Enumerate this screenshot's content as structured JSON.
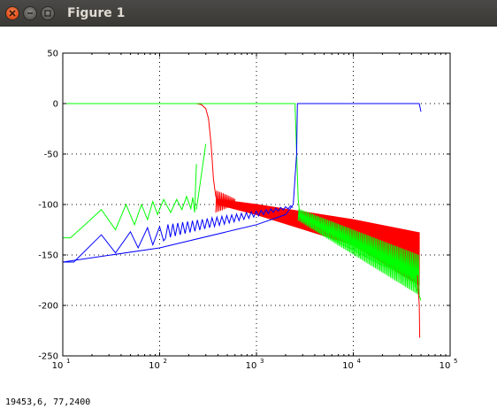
{
  "window": {
    "title": "Figure 1",
    "close_icon": "close-icon",
    "minimize_icon": "minimize-icon",
    "maximize_icon": "maximize-icon"
  },
  "status": {
    "coords": "19453,6,  77,2400"
  },
  "chart_data": {
    "type": "line",
    "title": "",
    "xlabel": "",
    "ylabel": "",
    "xscale": "log",
    "xlim": [
      10,
      100000
    ],
    "ylim": [
      -250,
      50
    ],
    "grid": true,
    "xtick_bases": [
      "10",
      "10",
      "10",
      "10",
      "10"
    ],
    "xtick_exps": [
      "1",
      "2",
      "3",
      "4",
      "5"
    ],
    "yticks": [
      "50",
      "0",
      "-50",
      "-100",
      "-150",
      "-200",
      "-250"
    ],
    "ytick_values": [
      50,
      0,
      -50,
      -100,
      -150,
      -200,
      -250
    ],
    "xtick_values": [
      10,
      100,
      1000,
      10000,
      100000
    ],
    "colors": {
      "red": "#ff0000",
      "green": "#00ff00",
      "blue": "#0000ff"
    },
    "series": [
      {
        "color": "#ff0000",
        "x": [
          10,
          100,
          200,
          240,
          270,
          300,
          320,
          340,
          360,
          380,
          400,
          500
        ],
        "y": [
          0,
          0,
          0,
          0,
          -1,
          -5,
          -15,
          -40,
          -75,
          -92,
          -97,
          -100
        ]
      },
      {
        "color": "#00ff00",
        "x": [
          10,
          300,
          2500,
          2700,
          2800,
          3000,
          5000,
          10000,
          20000,
          40000,
          50000
        ],
        "y": [
          0,
          0,
          0,
          -95,
          -110,
          -115,
          -130,
          -145,
          -160,
          -170,
          -195
        ]
      },
      {
        "color": "#0000ff",
        "x": [
          10,
          100,
          1000,
          2000,
          2400,
          2600,
          2650,
          2700,
          5000,
          10000,
          48000,
          50000
        ],
        "y": [
          -157,
          -143,
          -120,
          -110,
          -100,
          -50,
          0,
          0,
          0,
          0,
          0,
          -8
        ]
      },
      {
        "color": "#ff0000",
        "x": [
          400,
          1000,
          10000,
          48000
        ],
        "y": [
          -95,
          -100,
          -115,
          -128
        ],
        "band_low_y": [
          -100,
          -110,
          -140,
          -180
        ]
      },
      {
        "color": "#00ff00",
        "x": [
          240,
          300
        ],
        "y": [
          -105,
          -40
        ]
      }
    ]
  }
}
